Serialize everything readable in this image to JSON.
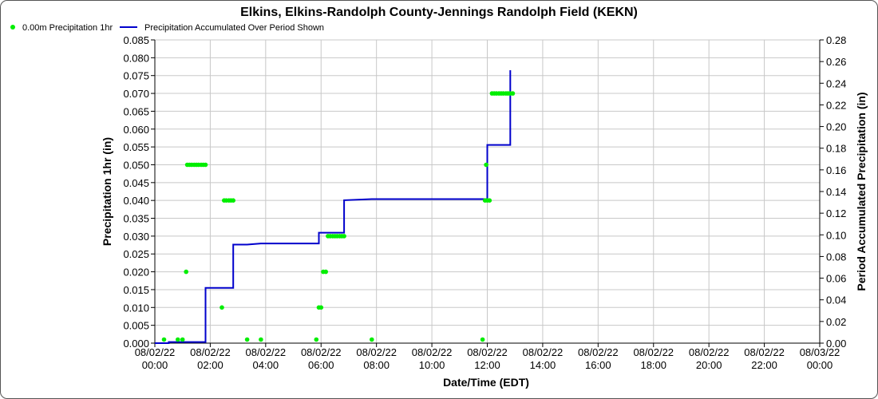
{
  "chart_data": {
    "type": "line",
    "title": "Elkins, Elkins-Randolph County-Jennings Randolph Field (KEKN)",
    "xlabel": "Date/Time (EDT)",
    "ylabel_left": "Precipitation 1hr (in)",
    "ylabel_right": "Period Accumulated Precipitation (in)",
    "ylim_left": [
      0,
      0.085
    ],
    "ylim_right": [
      0,
      0.28
    ],
    "yticks_left": [
      "0.000",
      "0.005",
      "0.010",
      "0.015",
      "0.020",
      "0.025",
      "0.030",
      "0.035",
      "0.040",
      "0.045",
      "0.050",
      "0.055",
      "0.060",
      "0.065",
      "0.070",
      "0.075",
      "0.080",
      "0.085"
    ],
    "yticks_right": [
      "0.00",
      "0.02",
      "0.04",
      "0.06",
      "0.08",
      "0.10",
      "0.12",
      "0.14",
      "0.16",
      "0.18",
      "0.20",
      "0.22",
      "0.24",
      "0.26",
      "0.28"
    ],
    "xlim_hours": [
      0,
      24
    ],
    "xticks": [
      {
        "date": "08/02/22",
        "time": "00:00"
      },
      {
        "date": "08/02/22",
        "time": "02:00"
      },
      {
        "date": "08/02/22",
        "time": "04:00"
      },
      {
        "date": "08/02/22",
        "time": "06:00"
      },
      {
        "date": "08/02/22",
        "time": "08:00"
      },
      {
        "date": "08/02/22",
        "time": "10:00"
      },
      {
        "date": "08/02/22",
        "time": "12:00"
      },
      {
        "date": "08/02/22",
        "time": "14:00"
      },
      {
        "date": "08/02/22",
        "time": "16:00"
      },
      {
        "date": "08/02/22",
        "time": "18:00"
      },
      {
        "date": "08/02/22",
        "time": "20:00"
      },
      {
        "date": "08/02/22",
        "time": "22:00"
      },
      {
        "date": "08/03/22",
        "time": "00:00"
      }
    ],
    "grid": true,
    "legend_position": "top-left",
    "series": [
      {
        "name": "0.00m Precipitation 1hr",
        "type": "scatter",
        "axis": "left",
        "color": "#00ee00",
        "points": [
          [
            0.33,
            0.001
          ],
          [
            0.83,
            0.001
          ],
          [
            1.0,
            0.001
          ],
          [
            1.13,
            0.02
          ],
          [
            1.17,
            0.05
          ],
          [
            1.25,
            0.05
          ],
          [
            1.33,
            0.05
          ],
          [
            1.42,
            0.05
          ],
          [
            1.5,
            0.05
          ],
          [
            1.58,
            0.05
          ],
          [
            1.67,
            0.05
          ],
          [
            1.75,
            0.05
          ],
          [
            1.83,
            0.05
          ],
          [
            2.42,
            0.01
          ],
          [
            2.5,
            0.04
          ],
          [
            2.58,
            0.04
          ],
          [
            2.67,
            0.04
          ],
          [
            2.75,
            0.04
          ],
          [
            2.83,
            0.04
          ],
          [
            3.33,
            0.001
          ],
          [
            3.83,
            0.001
          ],
          [
            5.83,
            0.001
          ],
          [
            5.92,
            0.01
          ],
          [
            6.0,
            0.01
          ],
          [
            6.08,
            0.02
          ],
          [
            6.17,
            0.02
          ],
          [
            6.25,
            0.03
          ],
          [
            6.33,
            0.03
          ],
          [
            6.42,
            0.03
          ],
          [
            6.5,
            0.03
          ],
          [
            6.58,
            0.03
          ],
          [
            6.67,
            0.03
          ],
          [
            6.75,
            0.03
          ],
          [
            6.83,
            0.03
          ],
          [
            7.83,
            0.001
          ],
          [
            11.83,
            0.001
          ],
          [
            11.92,
            0.04
          ],
          [
            11.96,
            0.05
          ],
          [
            12.0,
            0.04
          ],
          [
            12.08,
            0.04
          ],
          [
            12.17,
            0.07
          ],
          [
            12.25,
            0.07
          ],
          [
            12.33,
            0.07
          ],
          [
            12.42,
            0.07
          ],
          [
            12.5,
            0.07
          ],
          [
            12.58,
            0.07
          ],
          [
            12.67,
            0.07
          ],
          [
            12.75,
            0.07
          ],
          [
            12.83,
            0.07
          ],
          [
            12.92,
            0.07
          ]
        ]
      },
      {
        "name": "Precipitation Accumulated Over Period Shown",
        "type": "line",
        "axis": "right",
        "color": "#0000cc",
        "points": [
          [
            0.0,
            0.0
          ],
          [
            0.5,
            0.0
          ],
          [
            0.5,
            0.001
          ],
          [
            1.83,
            0.001
          ],
          [
            1.83,
            0.051
          ],
          [
            2.83,
            0.051
          ],
          [
            2.83,
            0.091
          ],
          [
            3.33,
            0.091
          ],
          [
            3.83,
            0.092
          ],
          [
            5.92,
            0.092
          ],
          [
            5.92,
            0.102
          ],
          [
            6.83,
            0.102
          ],
          [
            6.83,
            0.132
          ],
          [
            7.83,
            0.133
          ],
          [
            11.92,
            0.133
          ],
          [
            12.0,
            0.133
          ],
          [
            12.0,
            0.183
          ],
          [
            12.83,
            0.183
          ],
          [
            12.83,
            0.252
          ]
        ]
      }
    ]
  }
}
